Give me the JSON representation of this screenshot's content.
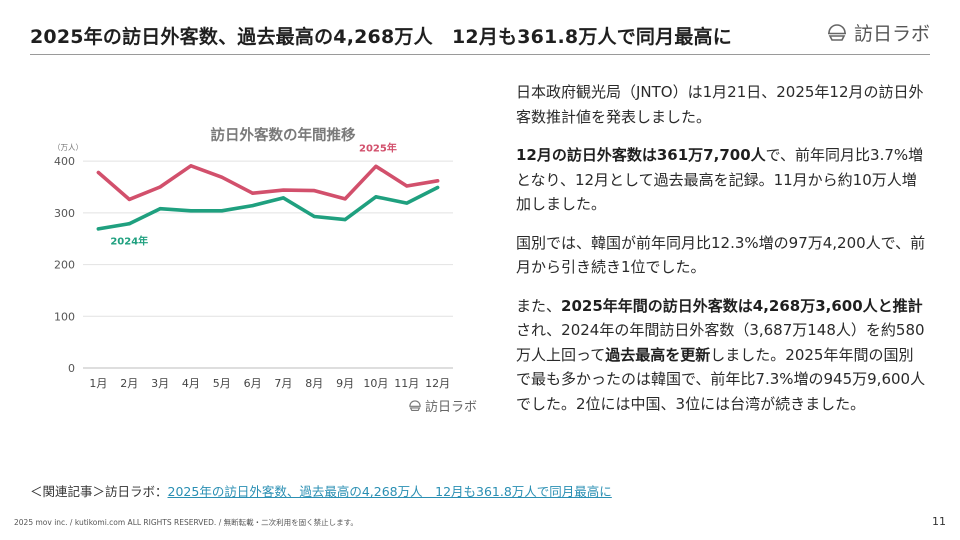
{
  "header": {
    "title": "2025年の訪日外客数、過去最高の4,268万人　12月も361.8万人で同月最高に",
    "logo_text": "訪日ラボ"
  },
  "chart_data": {
    "type": "line",
    "title": "訪日外客数の年間推移",
    "ylabel": "（万人）",
    "xlabel": "",
    "categories": [
      "1月",
      "2月",
      "3月",
      "4月",
      "5月",
      "6月",
      "7月",
      "8月",
      "9月",
      "10月",
      "11月",
      "12月"
    ],
    "yticks": [
      0,
      100,
      200,
      300,
      400
    ],
    "ylim": [
      0,
      410
    ],
    "grid": "horizontal",
    "series": [
      {
        "name": "2025年",
        "color": "#d2506c",
        "values": [
          378,
          326,
          350,
          391,
          369,
          338,
          344,
          343,
          327,
          390,
          352,
          362
        ]
      },
      {
        "name": "2024年",
        "color": "#1fa07f",
        "values": [
          269,
          279,
          308,
          304,
          304,
          314,
          329,
          293,
          287,
          331,
          319,
          349
        ]
      }
    ],
    "watermark": "訪日ラボ"
  },
  "body": {
    "p1": "日本政府観光局（JNTO）は1月21日、2025年12月の訪日外客数推計値を発表しました。",
    "p2_bold": "12月の訪日外客数は361万7,700人",
    "p2_rest": "で、前年同月比3.7%増となり、12月として過去最高を記録。11月から約10万人増加しました。",
    "p3": "国別では、韓国が前年同月比12.3%増の97万4,200人で、前月から引き続き1位でした。",
    "p4_a": "また、",
    "p4_bold1": "2025年年間の訪日外客数は4,268万3,600人と推計",
    "p4_b": "され、2024年の年間訪日外客数（3,687万148人）を約580万人上回って",
    "p4_bold2": "過去最高を更新",
    "p4_c": "しました。2025年年間の国別で最も多かったのは韓国で、前年比7.3%増の945万9,600人でした。2位には中国、3位には台湾が続きました。"
  },
  "related": {
    "prefix": "＜関連記事＞訪日ラボ：",
    "link": "2025年の訪日外客数、過去最高の4,268万人　12月も361.8万人で同月最高に"
  },
  "footer": {
    "copyright": "2025 mov inc. / kutikomi.com ALL RIGHTS RESERVED. / 無断転載・二次利用を固く禁止します。",
    "page": "11"
  }
}
